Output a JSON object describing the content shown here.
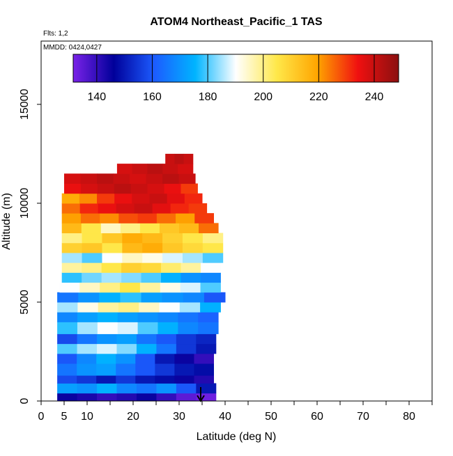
{
  "chart_data": {
    "type": "curtain",
    "title": "ATOM4 Northeast_Pacific_1 TAS",
    "subtitles": [
      "Flts: 1,2",
      "MMDD: 0424,0427"
    ],
    "x_label": "Latitude (deg N)",
    "y_label": "Altitude (m)",
    "xlim": [
      0,
      85
    ],
    "xticks": [
      0,
      5,
      10,
      20,
      30,
      40,
      50,
      60,
      70,
      80
    ],
    "x_minor_ticks": [
      15,
      25,
      35,
      45,
      55,
      65,
      75,
      85
    ],
    "ylim": [
      0,
      18200
    ],
    "yticks": [
      0,
      5000,
      10000,
      15000
    ],
    "colorbar": {
      "clim": [
        131.5,
        248.8
      ],
      "ticks": [
        140,
        160,
        180,
        200,
        220,
        240
      ],
      "colors": [
        "#7a22e8",
        "#00009a",
        "#1c5cff",
        "#00b4ff",
        "#ffffff",
        "#ffe84a",
        "#ffa500",
        "#f01010",
        "#8b1010"
      ]
    },
    "rows": [
      {
        "alt": [
          0,
          400
        ],
        "lat": [
          3.5,
          38
        ],
        "values": [
          145,
          143,
          140,
          142,
          145,
          140,
          135,
          133
        ]
      },
      {
        "alt": [
          400,
          900
        ],
        "lat": [
          3.5,
          38
        ],
        "values": [
          172,
          170,
          175,
          168,
          165,
          170,
          160,
          150
        ]
      },
      {
        "alt": [
          900,
          1300
        ],
        "lat": [
          3.5,
          37.5
        ],
        "values": [
          158,
          155,
          150,
          155,
          150,
          148,
          145,
          142
        ]
      },
      {
        "alt": [
          1300,
          1900
        ],
        "lat": [
          3.5,
          37.5
        ],
        "values": [
          165,
          170,
          172,
          165,
          160,
          155,
          150,
          148
        ]
      },
      {
        "alt": [
          1900,
          2400
        ],
        "lat": [
          3.5,
          37.5
        ],
        "values": [
          160,
          168,
          175,
          170,
          160,
          150,
          145,
          140
        ]
      },
      {
        "alt": [
          2400,
          2900
        ],
        "lat": [
          3.5,
          38
        ],
        "values": [
          180,
          185,
          188,
          183,
          175,
          165,
          155,
          150
        ]
      },
      {
        "alt": [
          2900,
          3400
        ],
        "lat": [
          3.5,
          38
        ],
        "values": [
          158,
          165,
          170,
          172,
          165,
          160,
          155,
          152
        ]
      },
      {
        "alt": [
          3400,
          4000
        ],
        "lat": [
          3.5,
          38.5
        ],
        "values": [
          178,
          185,
          190,
          188,
          180,
          175,
          168,
          165
        ]
      },
      {
        "alt": [
          4000,
          4500
        ],
        "lat": [
          3.5,
          38.5
        ],
        "values": [
          168,
          172,
          175,
          172,
          170,
          168,
          165,
          162
        ]
      },
      {
        "alt": [
          4500,
          5000
        ],
        "lat": [
          3.5,
          39
        ],
        "values": [
          185,
          192,
          198,
          200,
          195,
          190,
          185,
          175
        ]
      },
      {
        "alt": [
          5000,
          5500
        ],
        "lat": [
          3.5,
          40
        ],
        "values": [
          165,
          170,
          175,
          178,
          172,
          170,
          168,
          160
        ]
      },
      {
        "alt": [
          5500,
          6000
        ],
        "lat": [
          4,
          39
        ],
        "values": [
          190,
          195,
          200,
          205,
          198,
          192,
          188,
          180
        ]
      },
      {
        "alt": [
          6000,
          6500
        ],
        "lat": [
          4.5,
          39
        ],
        "values": [
          178,
          182,
          185,
          183,
          180,
          175,
          170,
          168
        ]
      },
      {
        "alt": [
          6500,
          7000
        ],
        "lat": [
          4.5,
          39
        ],
        "values": [
          198,
          200,
          205,
          210,
          208,
          202,
          198,
          190
        ]
      },
      {
        "alt": [
          7000,
          7500
        ],
        "lat": [
          4.5,
          39.5
        ],
        "values": [
          185,
          180,
          190,
          195,
          192,
          188,
          185,
          180
        ]
      },
      {
        "alt": [
          7500,
          8000
        ],
        "lat": [
          4.5,
          39.5
        ],
        "values": [
          210,
          212,
          205,
          215,
          218,
          212,
          208,
          205
        ]
      },
      {
        "alt": [
          8000,
          8500
        ],
        "lat": [
          4.5,
          39.5
        ],
        "values": [
          200,
          205,
          212,
          218,
          215,
          210,
          205,
          200
        ]
      },
      {
        "alt": [
          8500,
          9000
        ],
        "lat": [
          4.5,
          38.5
        ],
        "values": [
          215,
          205,
          195,
          200,
          205,
          212,
          215,
          225
        ]
      },
      {
        "alt": [
          9000,
          9500
        ],
        "lat": [
          4.5,
          37.5
        ],
        "values": [
          220,
          225,
          222,
          228,
          230,
          225,
          220,
          230
        ]
      },
      {
        "alt": [
          9500,
          10000
        ],
        "lat": [
          4.5,
          36
        ],
        "values": [
          225,
          232,
          235,
          238,
          240,
          236,
          232,
          230
        ]
      },
      {
        "alt": [
          10000,
          10500
        ],
        "lat": [
          4.5,
          35
        ],
        "values": [
          218,
          222,
          230,
          235,
          238,
          240,
          236,
          232
        ]
      },
      {
        "alt": [
          10500,
          11000
        ],
        "lat": [
          5,
          34
        ],
        "values": [
          235,
          238,
          240,
          242,
          240,
          238,
          235,
          230
        ]
      },
      {
        "alt": [
          11000,
          11500
        ],
        "lat": [
          5,
          33.5
        ],
        "values": [
          238,
          240,
          242,
          240,
          238,
          240,
          242,
          240
        ]
      },
      {
        "alt": [
          11500,
          12000
        ],
        "lat": [
          16.5,
          33
        ],
        "values": [
          238,
          240,
          242,
          240,
          238
        ]
      },
      {
        "alt": [
          12000,
          12500
        ],
        "lat": [
          27,
          33
        ],
        "values": [
          240,
          242,
          240
        ]
      }
    ]
  }
}
